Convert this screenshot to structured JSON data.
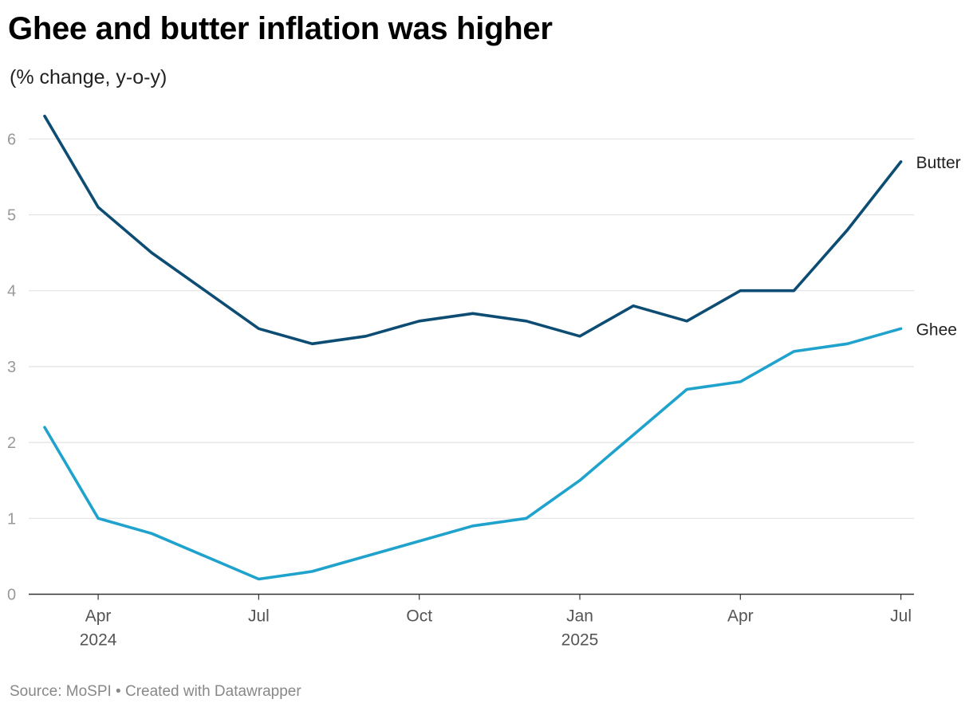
{
  "header": {
    "title": "Ghee and butter inflation was higher",
    "subtitle": "(% change, y-o-y)"
  },
  "footer": {
    "source": "Source: MoSPI • Created with Datawrapper"
  },
  "chart_data": {
    "type": "line",
    "title": "Ghee and butter inflation was higher",
    "subtitle": "(% change, y-o-y)",
    "xlabel": "",
    "ylabel": "",
    "x": [
      "2024-03",
      "2024-04",
      "2024-05",
      "2024-06",
      "2024-07",
      "2024-08",
      "2024-09",
      "2024-10",
      "2024-11",
      "2024-12",
      "2025-01",
      "2025-02",
      "2025-03",
      "2025-04",
      "2025-05",
      "2025-06",
      "2025-07"
    ],
    "xlim": [
      "2024-03",
      "2025-07"
    ],
    "ylim": [
      0,
      6.3
    ],
    "y_ticks": [
      "0",
      "1",
      "2",
      "3",
      "4",
      "5",
      "6"
    ],
    "x_ticks": [
      {
        "x": "2024-04",
        "label": "Apr",
        "year": "2024"
      },
      {
        "x": "2024-07",
        "label": "Jul",
        "year": ""
      },
      {
        "x": "2024-10",
        "label": "Oct",
        "year": ""
      },
      {
        "x": "2025-01",
        "label": "Jan",
        "year": "2025"
      },
      {
        "x": "2025-04",
        "label": "Apr",
        "year": ""
      },
      {
        "x": "2025-07",
        "label": "Jul",
        "year": ""
      }
    ],
    "grid": true,
    "legend": "inline labels at line ends",
    "series": [
      {
        "name": "Butter",
        "color": "#0e4d73",
        "values": [
          6.3,
          5.1,
          4.5,
          4.0,
          3.5,
          3.3,
          3.4,
          3.6,
          3.7,
          3.6,
          3.4,
          3.8,
          3.6,
          4.0,
          4.0,
          4.8,
          5.7
        ]
      },
      {
        "name": "Ghee",
        "color": "#1fa2cc",
        "values": [
          2.2,
          1.0,
          0.8,
          0.5,
          0.2,
          0.3,
          0.5,
          0.7,
          0.9,
          1.0,
          1.5,
          2.1,
          2.7,
          2.8,
          3.2,
          3.3,
          3.5
        ]
      }
    ]
  }
}
